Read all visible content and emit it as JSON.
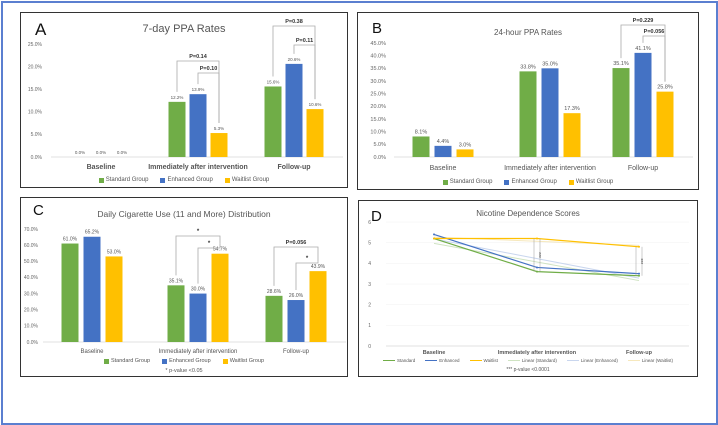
{
  "colors": {
    "standard": "#70ad47",
    "enhanced": "#4472c4",
    "waitlist": "#ffc000",
    "frame": "#5b7fd0"
  },
  "chart_data": [
    {
      "panel": "A",
      "type": "bar",
      "title": "7-day PPA Rates",
      "categories": [
        "Baseline",
        "Immediately after intervention",
        "Follow-up"
      ],
      "series": [
        {
          "name": "Standard Group",
          "values": [
            0.0,
            12.2,
            15.6
          ],
          "labels": [
            "0.0%",
            "12.2%",
            "15.6%"
          ]
        },
        {
          "name": "Enhanced Group",
          "values": [
            0.0,
            13.9,
            20.6
          ],
          "labels": [
            "0.0%",
            "13.9%",
            "20.6%"
          ]
        },
        {
          "name": "Waitlist Group",
          "values": [
            0.0,
            5.3,
            10.6
          ],
          "labels": [
            "0.0%",
            "5.3%",
            "10.6%"
          ]
        }
      ],
      "ylim": [
        0,
        25
      ],
      "yticks": [
        "0.0%",
        "5.0%",
        "10.0%",
        "15.0%",
        "20.0%",
        "25.0%"
      ],
      "legend": "bottom",
      "grid": false,
      "annotations": [
        {
          "category": 1,
          "from": 0,
          "to": 2,
          "label": "P=0.14"
        },
        {
          "category": 1,
          "from": 1,
          "to": 2,
          "label": "P=0.10"
        },
        {
          "category": 2,
          "from": 0,
          "to": 2,
          "label": "P=0.38"
        },
        {
          "category": 2,
          "from": 1,
          "to": 2,
          "label": "P=0.11"
        }
      ]
    },
    {
      "panel": "B",
      "type": "bar",
      "title": "24-hour PPA Rates",
      "categories": [
        "Baseline",
        "Immediately after intervention",
        "Follow-up"
      ],
      "series": [
        {
          "name": "Standard Group",
          "values": [
            8.1,
            33.8,
            35.1
          ],
          "labels": [
            "8.1%",
            "33.8%",
            "35.1%"
          ]
        },
        {
          "name": "Enhanced Group",
          "values": [
            4.4,
            35.0,
            41.1
          ],
          "labels": [
            "4.4%",
            "35.0%",
            "41.1%"
          ]
        },
        {
          "name": "Waitlist Group",
          "values": [
            3.0,
            17.3,
            25.8
          ],
          "labels": [
            "3.0%",
            "17.3%",
            "25.8%"
          ]
        }
      ],
      "ylim": [
        0,
        45
      ],
      "yticks": [
        "0.0%",
        "5.0%",
        "10.0%",
        "15.0%",
        "20.0%",
        "25.0%",
        "30.0%",
        "35.0%",
        "40.0%",
        "45.0%"
      ],
      "legend": "bottom",
      "grid": false,
      "annotations": [
        {
          "category": 2,
          "from": 0,
          "to": 2,
          "label": "P=0.229"
        },
        {
          "category": 2,
          "from": 1,
          "to": 2,
          "label": "P=0.056"
        }
      ]
    },
    {
      "panel": "C",
      "type": "bar",
      "title": "Daily Cigarette Use (11 and More) Distribution",
      "categories": [
        "Baseline",
        "Immediately after intervention",
        "Follow-up"
      ],
      "series": [
        {
          "name": "Standard Group",
          "values": [
            61.0,
            35.1,
            28.6
          ],
          "labels": [
            "61.0%",
            "35.1%",
            "28.6%"
          ]
        },
        {
          "name": "Enhanced Group",
          "values": [
            65.2,
            30.0,
            26.0
          ],
          "labels": [
            "65.2%",
            "30.0%",
            "26.0%"
          ]
        },
        {
          "name": "Waitlist Group",
          "values": [
            53.0,
            54.7,
            43.9
          ],
          "labels": [
            "53.0%",
            "54.7%",
            "43.9%"
          ]
        }
      ],
      "ylim": [
        0,
        70
      ],
      "yticks": [
        "0.0%",
        "10.0%",
        "20.0%",
        "30.0%",
        "40.0%",
        "50.0%",
        "60.0%",
        "70.0%"
      ],
      "legend": "bottom",
      "grid": false,
      "annotations": [
        {
          "category": 1,
          "from": 0,
          "to": 2,
          "label": "*"
        },
        {
          "category": 1,
          "from": 1,
          "to": 2,
          "label": "*"
        },
        {
          "category": 2,
          "from": 0,
          "to": 2,
          "label": "P=0.056"
        },
        {
          "category": 2,
          "from": 1,
          "to": 2,
          "label": "*"
        }
      ],
      "note": "* p-value <0.05"
    },
    {
      "panel": "D",
      "type": "line",
      "title": "Nicotine Dependence Scores",
      "categories": [
        "Baseline",
        "Immediately after intervention",
        "Follow-up"
      ],
      "series": [
        {
          "name": "Standard",
          "values": [
            5.2,
            3.6,
            3.4
          ]
        },
        {
          "name": "Enhanced",
          "values": [
            5.4,
            3.8,
            3.5
          ]
        },
        {
          "name": "Waitlist",
          "values": [
            5.2,
            5.2,
            4.8
          ]
        }
      ],
      "trendlines": [
        "Linear  (Standard)",
        "Linear  (Enhanced)",
        "Linear  (Waitlist)"
      ],
      "ylim": [
        0,
        6
      ],
      "yticks": [
        "0",
        "1",
        "2",
        "3",
        "4",
        "5",
        "6"
      ],
      "legend": "bottom",
      "grid": true,
      "significance": [
        {
          "category": 1,
          "label": "***"
        },
        {
          "category": 2,
          "label": "***"
        }
      ],
      "note": "*** p-value <0.0001"
    }
  ]
}
